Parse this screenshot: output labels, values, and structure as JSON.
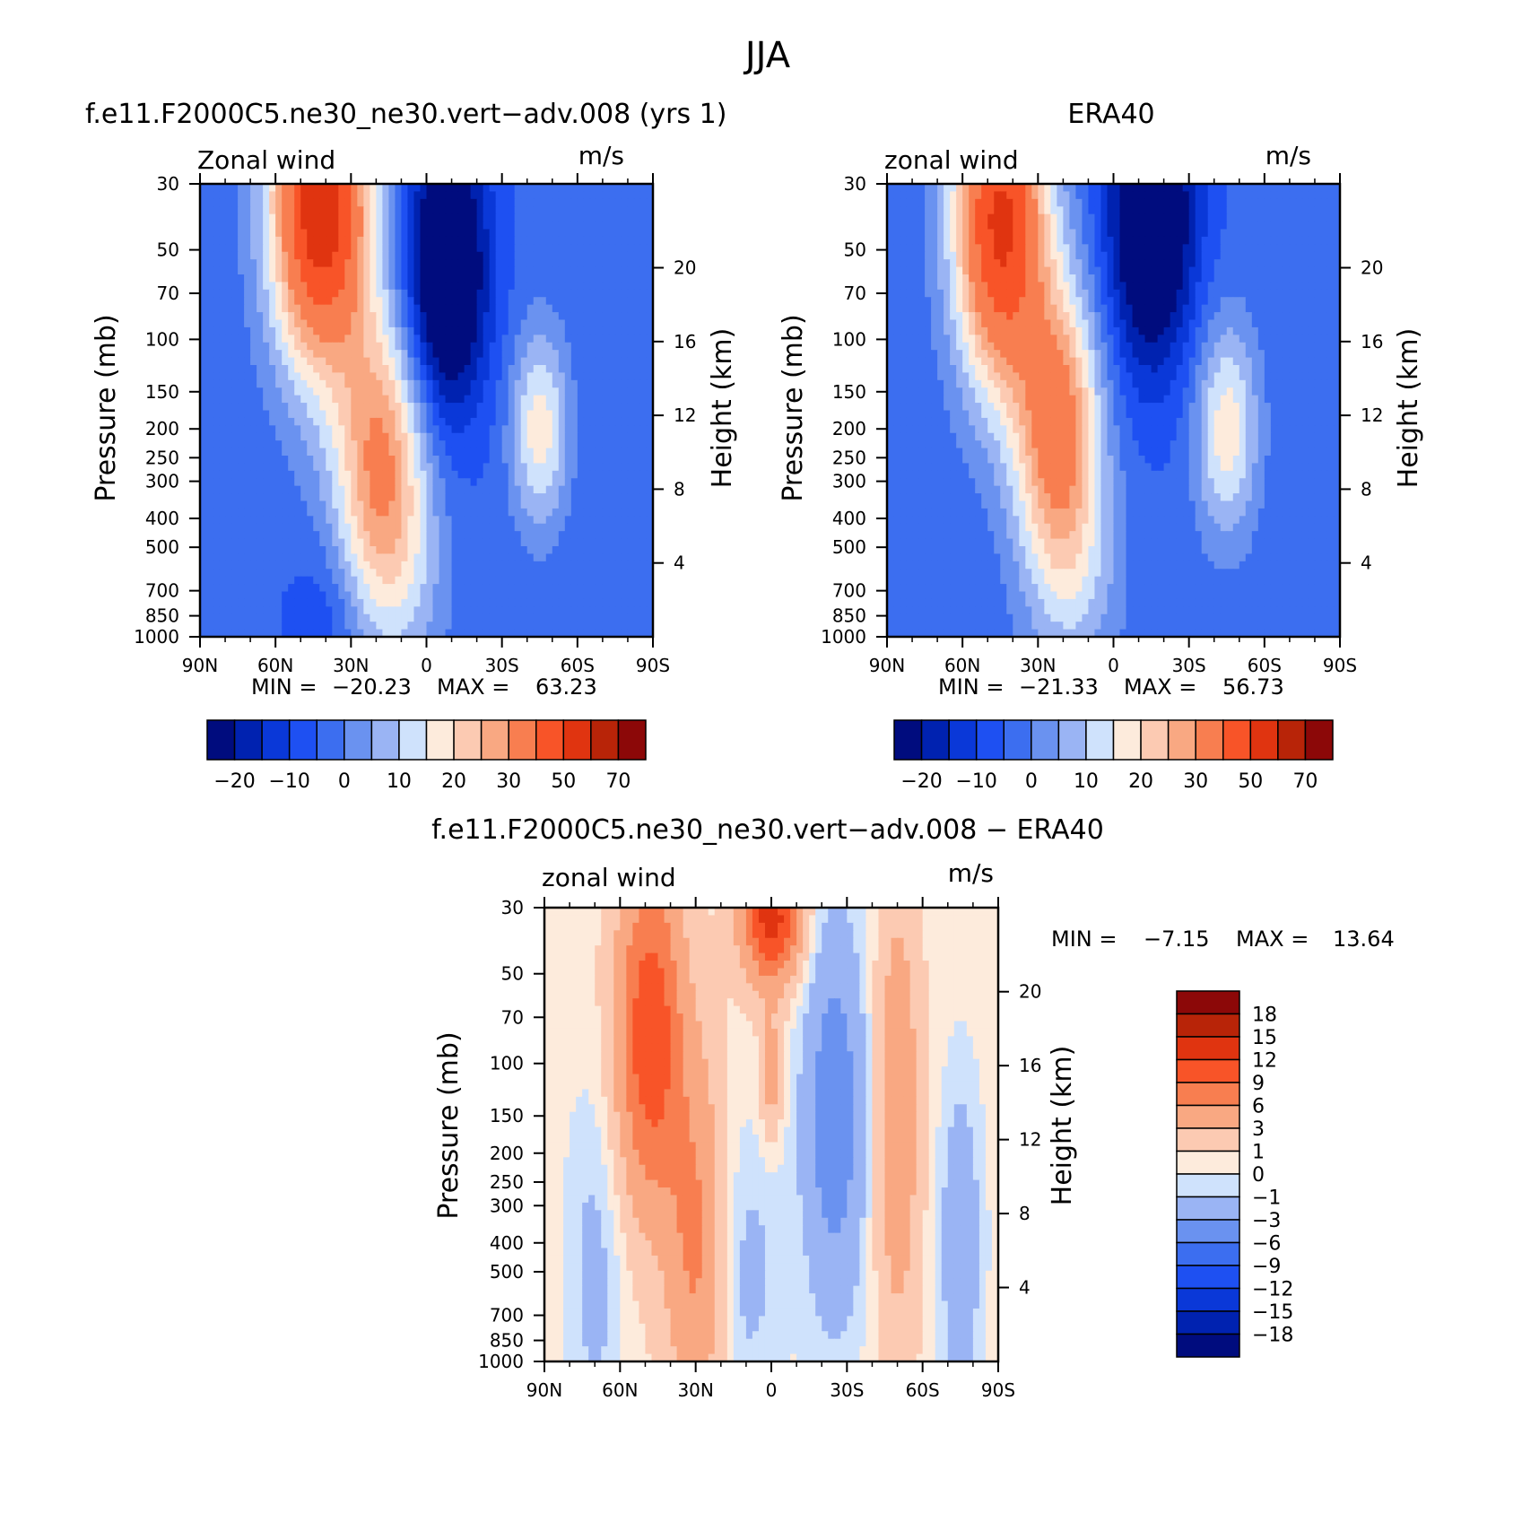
{
  "figure": {
    "title": "JJA"
  },
  "palette": {
    "colors": [
      "#000c7e",
      "#0022b0",
      "#0a38d8",
      "#1e50f2",
      "#3c6ef0",
      "#6a92f0",
      "#9ab4f4",
      "#cfe2fc",
      "#fdebdc",
      "#fccab2",
      "#f9a882",
      "#f87e50",
      "#f85428",
      "#e03410",
      "#b82408",
      "#8c0808"
    ]
  },
  "chart_data": [
    {
      "id": "model",
      "type": "heatmap",
      "title": "f.e11.F2000C5.ne30_ne30.vert−adv.008 (yrs 1)",
      "left_label": "Zonal wind",
      "right_label": "m/s",
      "ylabel": "Pressure (mb)",
      "y2label": "Height (km)",
      "x_tick_labels": [
        "90N",
        "60N",
        "30N",
        "0",
        "30S",
        "60S",
        "90S"
      ],
      "y_tick_labels": [
        "30",
        "50",
        "70",
        "100",
        "150",
        "200",
        "250",
        "300",
        "400",
        "500",
        "700",
        "850",
        "1000"
      ],
      "y2_tick_labels": [
        "20",
        "16",
        "12",
        "8",
        "4"
      ],
      "stats": {
        "min_label": "MIN =",
        "min": "−20.23",
        "max_label": "MAX =",
        "max": "63.23"
      },
      "colorbar_labels": [
        "−20",
        "−10",
        "0",
        "10",
        "20",
        "30",
        "50",
        "70"
      ],
      "ylim": [
        1000,
        30
      ],
      "fields": [
        {
          "lat": -45,
          "p": 200,
          "v": 22,
          "sx": 8,
          "sy": 0.55
        },
        {
          "lat": -8,
          "p": 60,
          "v": -34,
          "sx": 11,
          "sy": 0.75
        },
        {
          "lat": 42,
          "p": 35,
          "v": 62,
          "sx": 14,
          "sy": 0.9
        },
        {
          "lat": 18,
          "p": 260,
          "v": 34,
          "sx": 13,
          "sy": 0.8
        },
        {
          "lat": 10,
          "p": 700,
          "v": 8,
          "sx": 14,
          "sy": 0.6
        },
        {
          "lat": 40,
          "p": 900,
          "v": -6,
          "sx": 10,
          "sy": 0.4
        }
      ]
    },
    {
      "id": "obs",
      "type": "heatmap",
      "title": "ERA40",
      "left_label": "zonal wind",
      "right_label": "m/s",
      "ylabel": "Pressure (mb)",
      "y2label": "Height (km)",
      "x_tick_labels": [
        "90N",
        "60N",
        "30N",
        "0",
        "30S",
        "60S",
        "90S"
      ],
      "y_tick_labels": [
        "30",
        "50",
        "70",
        "100",
        "150",
        "200",
        "250",
        "300",
        "400",
        "500",
        "700",
        "850",
        "1000"
      ],
      "y2_tick_labels": [
        "20",
        "16",
        "12",
        "8",
        "4"
      ],
      "stats": {
        "min_label": "MIN =",
        "min": "−21.33",
        "max_label": "MAX =",
        "max": "56.73"
      },
      "colorbar_labels": [
        "−20",
        "−10",
        "0",
        "10",
        "20",
        "30",
        "50",
        "70"
      ],
      "ylim": [
        1000,
        30
      ],
      "fields": [
        {
          "lat": -45,
          "p": 200,
          "v": 22,
          "sx": 9,
          "sy": 0.6
        },
        {
          "lat": -15,
          "p": 40,
          "v": -32,
          "sx": 12,
          "sy": 0.8
        },
        {
          "lat": 45,
          "p": 40,
          "v": 56,
          "sx": 13,
          "sy": 0.9
        },
        {
          "lat": 22,
          "p": 200,
          "v": 38,
          "sx": 12,
          "sy": 0.8
        },
        {
          "lat": 15,
          "p": 650,
          "v": 10,
          "sx": 14,
          "sy": 0.6
        }
      ]
    },
    {
      "id": "diff",
      "type": "heatmap",
      "title": "f.e11.F2000C5.ne30_ne30.vert−adv.008 − ERA40",
      "left_label": "zonal wind",
      "right_label": "m/s",
      "ylabel": "Pressure (mb)",
      "y2label": "Height (km)",
      "x_tick_labels": [
        "90N",
        "60N",
        "30N",
        "0",
        "30S",
        "60S",
        "90S"
      ],
      "y_tick_labels": [
        "30",
        "50",
        "70",
        "100",
        "150",
        "200",
        "250",
        "300",
        "400",
        "500",
        "700",
        "850",
        "1000"
      ],
      "y2_tick_labels": [
        "20",
        "16",
        "12",
        "8",
        "4"
      ],
      "stats": {
        "min_label": "MIN =",
        "min": "−7.15",
        "max_label": "MAX =",
        "max": "13.64"
      },
      "colorbar_labels": [
        "18",
        "15",
        "12",
        "9",
        "6",
        "3",
        "1",
        "0",
        "−1",
        "−3",
        "−6",
        "−9",
        "−12",
        "−15",
        "−18"
      ],
      "ylim": [
        1000,
        30
      ],
      "fields": [
        {
          "lat": -50,
          "p": 150,
          "v": 5,
          "sx": 6,
          "sy": 1.2
        },
        {
          "lat": -25,
          "p": 150,
          "v": -5,
          "sx": 9,
          "sy": 1.1
        },
        {
          "lat": 0,
          "p": 32,
          "v": 13,
          "sx": 8,
          "sy": 0.35
        },
        {
          "lat": 0,
          "p": 110,
          "v": 4,
          "sx": 3,
          "sy": 0.35
        },
        {
          "lat": 48,
          "p": 80,
          "v": 11,
          "sx": 9,
          "sy": 0.9
        },
        {
          "lat": 30,
          "p": 400,
          "v": 6,
          "sx": 8,
          "sy": 1.0
        },
        {
          "lat": -75,
          "p": 400,
          "v": -3,
          "sx": 6,
          "sy": 0.9
        },
        {
          "lat": 10,
          "p": 500,
          "v": -2,
          "sx": 10,
          "sy": 0.8
        },
        {
          "lat": 70,
          "p": 500,
          "v": -2,
          "sx": 8,
          "sy": 1.0
        }
      ]
    }
  ]
}
